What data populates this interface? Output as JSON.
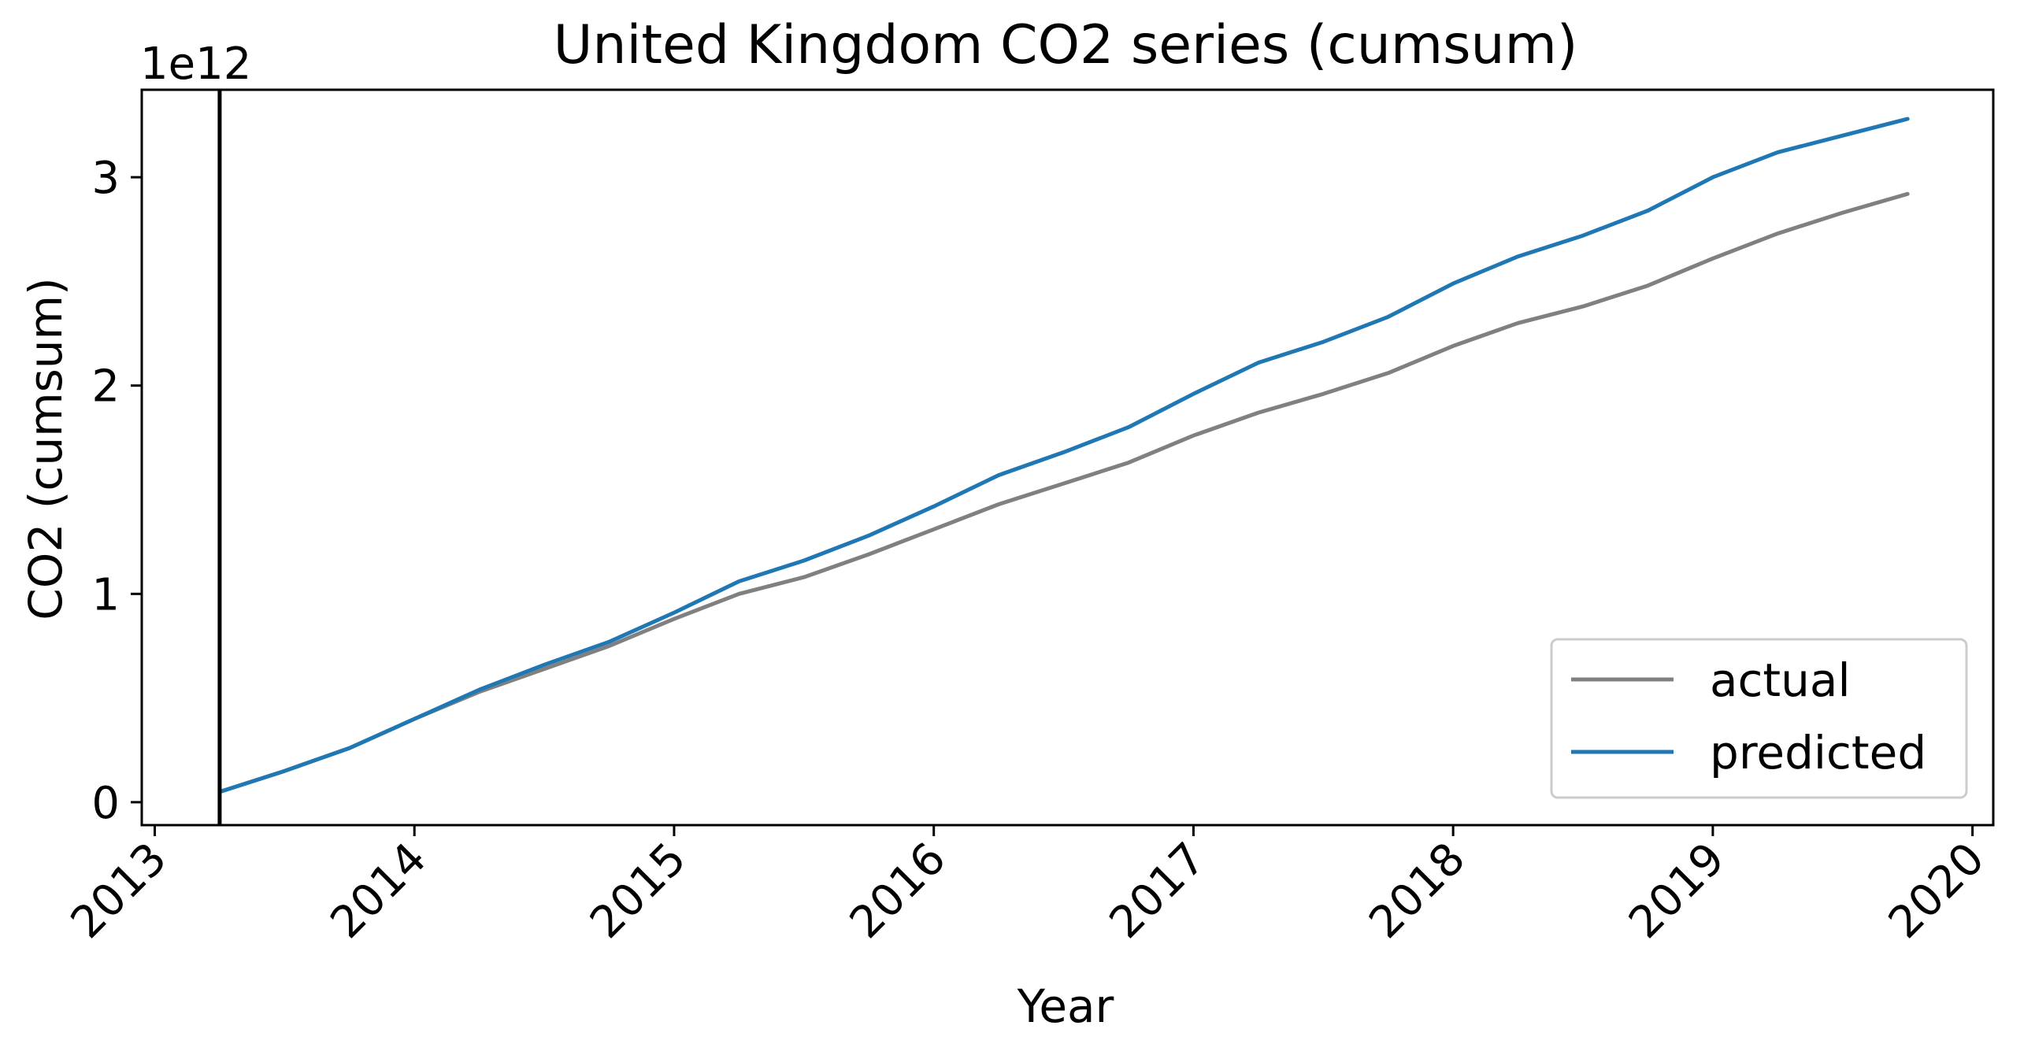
{
  "chart_data": {
    "type": "line",
    "title": "United Kingdom  CO2 series (cumsum)",
    "xlabel": "Year",
    "ylabel": "CO2 (cumsum)",
    "y_offset_label": "1e12",
    "xlim": [
      2012.95,
      2020.08
    ],
    "ylim": [
      -0.11,
      3.42
    ],
    "x_ticks": [
      2013,
      2014,
      2015,
      2016,
      2017,
      2018,
      2019,
      2020
    ],
    "x_tick_labels": [
      "2013",
      "2014",
      "2015",
      "2016",
      "2017",
      "2018",
      "2019",
      "2020"
    ],
    "y_ticks": [
      0,
      1,
      2,
      3
    ],
    "y_tick_labels": [
      "0",
      "1",
      "2",
      "3"
    ],
    "vline_x": 2013.25,
    "grid": false,
    "legend_position": "bottom-right",
    "series": [
      {
        "name": "actual",
        "color": "#808080",
        "x": [
          2013.25,
          2013.5,
          2013.75,
          2014.0,
          2014.25,
          2014.5,
          2014.75,
          2015.0,
          2015.25,
          2015.5,
          2015.75,
          2016.0,
          2016.25,
          2016.5,
          2016.75,
          2017.0,
          2017.25,
          2017.5,
          2017.75,
          2018.0,
          2018.25,
          2018.5,
          2018.75,
          2019.0,
          2019.25,
          2019.5,
          2019.75
        ],
        "values": [
          0.05,
          0.15,
          0.26,
          0.4,
          0.53,
          0.64,
          0.75,
          0.88,
          1.0,
          1.08,
          1.19,
          1.31,
          1.43,
          1.53,
          1.63,
          1.76,
          1.87,
          1.96,
          2.06,
          2.19,
          2.3,
          2.38,
          2.48,
          2.61,
          2.73,
          2.83,
          2.92
        ]
      },
      {
        "name": "predicted",
        "color": "#1f77b4",
        "x": [
          2013.25,
          2013.5,
          2013.75,
          2014.0,
          2014.25,
          2014.5,
          2014.75,
          2015.0,
          2015.25,
          2015.5,
          2015.75,
          2016.0,
          2016.25,
          2016.5,
          2016.75,
          2017.0,
          2017.25,
          2017.5,
          2017.75,
          2018.0,
          2018.25,
          2018.5,
          2018.75,
          2019.0,
          2019.25,
          2019.5,
          2019.75
        ],
        "values": [
          0.05,
          0.15,
          0.26,
          0.4,
          0.54,
          0.66,
          0.77,
          0.91,
          1.06,
          1.16,
          1.28,
          1.42,
          1.57,
          1.68,
          1.8,
          1.96,
          2.11,
          2.21,
          2.33,
          2.49,
          2.62,
          2.72,
          2.84,
          3.0,
          3.12,
          3.2,
          3.28
        ]
      }
    ]
  }
}
